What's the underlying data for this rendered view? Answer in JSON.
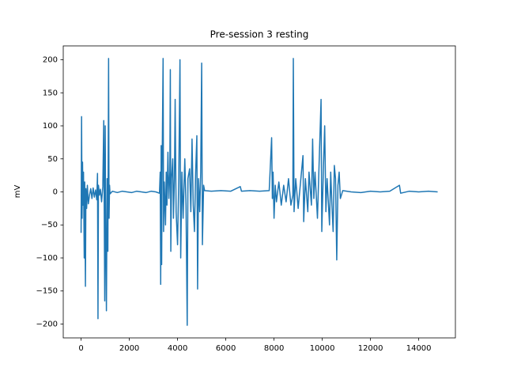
{
  "chart_data": {
    "type": "line",
    "title": "Pre-session 3 resting",
    "y_label": "mV",
    "color": "#1f77b4",
    "x": [
      0,
      20,
      40,
      60,
      80,
      100,
      130,
      150,
      180,
      200,
      230,
      260,
      300,
      350,
      400,
      450,
      500,
      550,
      600,
      650,
      680,
      700,
      720,
      760,
      800,
      850,
      900,
      940,
      960,
      980,
      1000,
      1020,
      1050,
      1080,
      1110,
      1140,
      1160,
      1180,
      1200,
      1300,
      1500,
      1700,
      1900,
      2100,
      2300,
      2500,
      2700,
      2900,
      3100,
      3250,
      3280,
      3300,
      3320,
      3340,
      3360,
      3400,
      3420,
      3450,
      3500,
      3530,
      3560,
      3600,
      3640,
      3680,
      3700,
      3720,
      3750,
      3800,
      3830,
      3870,
      3900,
      3940,
      4000,
      4050,
      4100,
      4130,
      4180,
      4230,
      4300,
      4350,
      4400,
      4430,
      4500,
      4550,
      4600,
      4650,
      4700,
      4750,
      4800,
      4830,
      4870,
      4920,
      4960,
      5000,
      5030,
      5080,
      5120,
      5400,
      5800,
      6200,
      6600,
      6650,
      7000,
      7400,
      7800,
      7900,
      7930,
      7960,
      8000,
      8050,
      8100,
      8200,
      8300,
      8400,
      8500,
      8600,
      8700,
      8780,
      8800,
      8830,
      8900,
      9000,
      9100,
      9200,
      9230,
      9300,
      9400,
      9450,
      9550,
      9600,
      9650,
      9700,
      9800,
      9850,
      9950,
      9980,
      10050,
      10100,
      10150,
      10200,
      10300,
      10350,
      10400,
      10450,
      10500,
      10550,
      10600,
      10650,
      10700,
      10750,
      10850,
      11200,
      11600,
      12000,
      12400,
      12800,
      13200,
      13250,
      13600,
      14000,
      14400,
      14784
    ],
    "values": [
      -62,
      114,
      -40,
      45,
      -20,
      30,
      -100,
      15,
      -143,
      5,
      -25,
      10,
      -18,
      -5,
      5,
      -10,
      6,
      -8,
      3,
      -12,
      28,
      -192,
      10,
      -5,
      4,
      -15,
      8,
      108,
      -30,
      -165,
      100,
      -60,
      -180,
      20,
      -90,
      202,
      -40,
      10,
      -3,
      1,
      -1,
      1,
      0,
      -1,
      1,
      0,
      -1,
      1,
      0,
      -2,
      30,
      -140,
      70,
      -110,
      40,
      202,
      -60,
      15,
      -50,
      30,
      -20,
      60,
      -10,
      30,
      185,
      -90,
      20,
      50,
      -40,
      20,
      140,
      -30,
      -80,
      20,
      200,
      -100,
      30,
      -40,
      50,
      -20,
      -202,
      20,
      35,
      -30,
      80,
      -20,
      -60,
      30,
      85,
      -147,
      20,
      -30,
      30,
      195,
      -80,
      10,
      2,
      1,
      2,
      1,
      8,
      1,
      2,
      1,
      2,
      82,
      -10,
      30,
      -40,
      10,
      -15,
      15,
      -20,
      10,
      -15,
      20,
      -20,
      -5,
      202,
      -30,
      20,
      -25,
      15,
      55,
      -45,
      20,
      -30,
      30,
      -20,
      80,
      -10,
      30,
      -40,
      20,
      140,
      -60,
      40,
      100,
      -30,
      20,
      -50,
      30,
      -20,
      -60,
      40,
      20,
      -103,
      10,
      30,
      -10,
      2,
      0,
      -1,
      1,
      0,
      1,
      10,
      -2,
      1,
      0,
      1,
      0
    ],
    "xlim": [
      -740,
      15520
    ],
    "ylim": [
      -221,
      221
    ],
    "xticks": [
      0,
      2000,
      4000,
      6000,
      8000,
      10000,
      12000,
      14000
    ],
    "yticks": [
      {
        "value": -200,
        "label": "−200"
      },
      {
        "value": -150,
        "label": "−150"
      },
      {
        "value": -100,
        "label": "−100"
      },
      {
        "value": -50,
        "label": "−50"
      },
      0,
      50,
      100,
      150,
      200
    ]
  }
}
